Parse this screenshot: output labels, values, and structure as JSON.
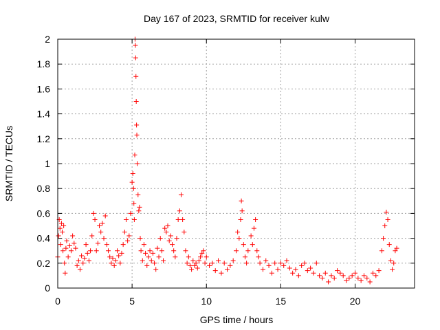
{
  "chart_data": {
    "type": "scatter",
    "title": "Day 167 of 2023, SRMTID for receiver kulw",
    "xlabel": "GPS time / hours",
    "ylabel": "SRMTID / TECUs",
    "xlim": [
      0,
      24
    ],
    "ylim": [
      0,
      2
    ],
    "grid": true,
    "marker": "+",
    "color": "#ff0000",
    "x_ticks": [
      0,
      5,
      10,
      15,
      20
    ],
    "x_tick_labels": [
      "0",
      "5",
      "10",
      "15",
      "20"
    ],
    "y_ticks": [
      0,
      0.2,
      0.4,
      0.6,
      0.8,
      1,
      1.2,
      1.4,
      1.6,
      1.8,
      2
    ],
    "y_tick_labels": [
      "0",
      "0.2",
      "0.4",
      "0.6",
      "0.8",
      "1",
      "1.2",
      "1.4",
      "1.6",
      "1.8",
      "2"
    ],
    "series": [
      {
        "name": "SRMTID",
        "points": [
          [
            0.0,
            0.25
          ],
          [
            0.05,
            0.42
          ],
          [
            0.1,
            0.55
          ],
          [
            0.15,
            0.48
          ],
          [
            0.2,
            0.35
          ],
          [
            0.25,
            0.52
          ],
          [
            0.3,
            0.45
          ],
          [
            0.35,
            0.3
          ],
          [
            0.4,
            0.5
          ],
          [
            0.45,
            0.2
          ],
          [
            0.5,
            0.12
          ],
          [
            0.55,
            0.32
          ],
          [
            0.6,
            0.38
          ],
          [
            0.7,
            0.25
          ],
          [
            0.8,
            0.34
          ],
          [
            0.9,
            0.3
          ],
          [
            1.0,
            0.42
          ],
          [
            1.1,
            0.36
          ],
          [
            1.2,
            0.32
          ],
          [
            1.3,
            0.18
          ],
          [
            1.4,
            0.22
          ],
          [
            1.5,
            0.15
          ],
          [
            1.6,
            0.26
          ],
          [
            1.7,
            0.2
          ],
          [
            1.8,
            0.24
          ],
          [
            1.9,
            0.35
          ],
          [
            2.0,
            0.28
          ],
          [
            2.1,
            0.22
          ],
          [
            2.2,
            0.3
          ],
          [
            2.3,
            0.42
          ],
          [
            2.4,
            0.6
          ],
          [
            2.5,
            0.55
          ],
          [
            2.6,
            0.3
          ],
          [
            2.7,
            0.36
          ],
          [
            2.8,
            0.5
          ],
          [
            2.9,
            0.45
          ],
          [
            3.0,
            0.52
          ],
          [
            3.1,
            0.4
          ],
          [
            3.2,
            0.58
          ],
          [
            3.3,
            0.35
          ],
          [
            3.4,
            0.3
          ],
          [
            3.5,
            0.25
          ],
          [
            3.6,
            0.2
          ],
          [
            3.7,
            0.24
          ],
          [
            3.8,
            0.18
          ],
          [
            3.9,
            0.22
          ],
          [
            4.0,
            0.3
          ],
          [
            4.1,
            0.26
          ],
          [
            4.2,
            0.2
          ],
          [
            4.3,
            0.28
          ],
          [
            4.4,
            0.35
          ],
          [
            4.5,
            0.45
          ],
          [
            4.6,
            0.55
          ],
          [
            4.7,
            0.38
          ],
          [
            4.8,
            0.42
          ],
          [
            4.9,
            0.6
          ],
          [
            5.0,
            0.85
          ],
          [
            5.05,
            0.92
          ],
          [
            5.1,
            0.8
          ],
          [
            5.12,
            0.68
          ],
          [
            5.15,
            0.55
          ],
          [
            5.18,
            1.07
          ],
          [
            5.2,
            2.0
          ],
          [
            5.22,
            1.95
          ],
          [
            5.24,
            1.85
          ],
          [
            5.26,
            1.7
          ],
          [
            5.28,
            1.5
          ],
          [
            5.3,
            1.31
          ],
          [
            5.32,
            1.23
          ],
          [
            5.35,
            1.0
          ],
          [
            5.4,
            0.75
          ],
          [
            5.45,
            0.62
          ],
          [
            5.5,
            0.65
          ],
          [
            5.55,
            0.4
          ],
          [
            5.6,
            0.3
          ],
          [
            5.7,
            0.22
          ],
          [
            5.8,
            0.35
          ],
          [
            5.9,
            0.28
          ],
          [
            6.0,
            0.18
          ],
          [
            6.1,
            0.25
          ],
          [
            6.2,
            0.3
          ],
          [
            6.3,
            0.22
          ],
          [
            6.4,
            0.28
          ],
          [
            6.5,
            0.2
          ],
          [
            6.6,
            0.15
          ],
          [
            6.7,
            0.32
          ],
          [
            6.8,
            0.25
          ],
          [
            6.9,
            0.4
          ],
          [
            7.0,
            0.3
          ],
          [
            7.1,
            0.22
          ],
          [
            7.2,
            0.48
          ],
          [
            7.3,
            0.45
          ],
          [
            7.4,
            0.5
          ],
          [
            7.5,
            0.38
          ],
          [
            7.6,
            0.42
          ],
          [
            7.7,
            0.35
          ],
          [
            7.8,
            0.3
          ],
          [
            7.9,
            0.25
          ],
          [
            8.0,
            0.4
          ],
          [
            8.1,
            0.55
          ],
          [
            8.2,
            0.62
          ],
          [
            8.3,
            0.75
          ],
          [
            8.4,
            0.55
          ],
          [
            8.5,
            0.45
          ],
          [
            8.6,
            0.3
          ],
          [
            8.7,
            0.2
          ],
          [
            8.8,
            0.25
          ],
          [
            8.9,
            0.18
          ],
          [
            9.0,
            0.15
          ],
          [
            9.1,
            0.22
          ],
          [
            9.2,
            0.18
          ],
          [
            9.3,
            0.2
          ],
          [
            9.4,
            0.16
          ],
          [
            9.5,
            0.22
          ],
          [
            9.6,
            0.25
          ],
          [
            9.7,
            0.28
          ],
          [
            9.8,
            0.3
          ],
          [
            9.9,
            0.2
          ],
          [
            10.0,
            0.25
          ],
          [
            10.2,
            0.18
          ],
          [
            10.4,
            0.2
          ],
          [
            10.6,
            0.14
          ],
          [
            10.8,
            0.22
          ],
          [
            11.0,
            0.12
          ],
          [
            11.2,
            0.2
          ],
          [
            11.4,
            0.15
          ],
          [
            11.6,
            0.18
          ],
          [
            11.8,
            0.22
          ],
          [
            12.0,
            0.3
          ],
          [
            12.1,
            0.45
          ],
          [
            12.2,
            0.4
          ],
          [
            12.3,
            0.55
          ],
          [
            12.35,
            0.7
          ],
          [
            12.4,
            0.62
          ],
          [
            12.5,
            0.35
          ],
          [
            12.6,
            0.25
          ],
          [
            12.7,
            0.2
          ],
          [
            12.8,
            0.3
          ],
          [
            13.0,
            0.42
          ],
          [
            13.1,
            0.35
          ],
          [
            13.2,
            0.48
          ],
          [
            13.3,
            0.55
          ],
          [
            13.4,
            0.3
          ],
          [
            13.5,
            0.25
          ],
          [
            13.6,
            0.2
          ],
          [
            13.8,
            0.15
          ],
          [
            14.0,
            0.22
          ],
          [
            14.2,
            0.18
          ],
          [
            14.4,
            0.12
          ],
          [
            14.6,
            0.2
          ],
          [
            14.8,
            0.15
          ],
          [
            15.0,
            0.2
          ],
          [
            15.2,
            0.18
          ],
          [
            15.4,
            0.22
          ],
          [
            15.6,
            0.16
          ],
          [
            15.8,
            0.12
          ],
          [
            16.0,
            0.15
          ],
          [
            16.2,
            0.1
          ],
          [
            16.4,
            0.18
          ],
          [
            16.6,
            0.2
          ],
          [
            16.8,
            0.14
          ],
          [
            17.0,
            0.16
          ],
          [
            17.2,
            0.12
          ],
          [
            17.4,
            0.2
          ],
          [
            17.6,
            0.1
          ],
          [
            17.8,
            0.08
          ],
          [
            18.0,
            0.12
          ],
          [
            18.2,
            0.05
          ],
          [
            18.4,
            0.1
          ],
          [
            18.6,
            0.08
          ],
          [
            18.8,
            0.14
          ],
          [
            19.0,
            0.12
          ],
          [
            19.2,
            0.1
          ],
          [
            19.4,
            0.06
          ],
          [
            19.6,
            0.08
          ],
          [
            19.8,
            0.1
          ],
          [
            20.0,
            0.12
          ],
          [
            20.2,
            0.08
          ],
          [
            20.4,
            0.06
          ],
          [
            20.6,
            0.1
          ],
          [
            20.8,
            0.08
          ],
          [
            21.0,
            0.05
          ],
          [
            21.2,
            0.12
          ],
          [
            21.4,
            0.1
          ],
          [
            21.6,
            0.14
          ],
          [
            21.8,
            0.3
          ],
          [
            21.9,
            0.4
          ],
          [
            22.0,
            0.5
          ],
          [
            22.1,
            0.61
          ],
          [
            22.2,
            0.55
          ],
          [
            22.3,
            0.35
          ],
          [
            22.4,
            0.22
          ],
          [
            22.5,
            0.15
          ],
          [
            22.6,
            0.2
          ],
          [
            22.7,
            0.3
          ],
          [
            22.8,
            0.32
          ]
        ]
      }
    ]
  }
}
